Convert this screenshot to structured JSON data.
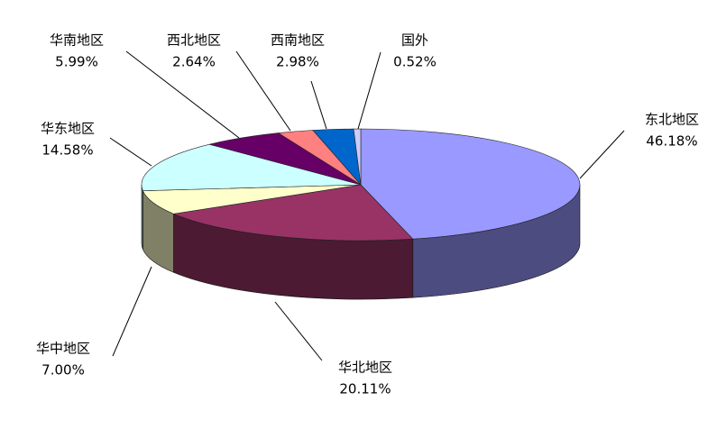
{
  "chart_data": {
    "type": "pie3d",
    "categories": [
      "东北地区",
      "华北地区",
      "华中地区",
      "华东地区",
      "华南地区",
      "西北地区",
      "西南地区",
      "国外"
    ],
    "values": [
      46.18,
      20.11,
      7.0,
      14.58,
      5.99,
      2.64,
      2.98,
      0.52
    ],
    "value_labels": [
      "46.18%",
      "20.11%",
      "7.00%",
      "14.58%",
      "5.99%",
      "2.64%",
      "2.98%",
      "0.52%"
    ],
    "colors": [
      "#9999ff",
      "#993366",
      "#ffffcc",
      "#ccffff",
      "#660066",
      "#ff8080",
      "#0066cc",
      "#ccccff"
    ]
  }
}
